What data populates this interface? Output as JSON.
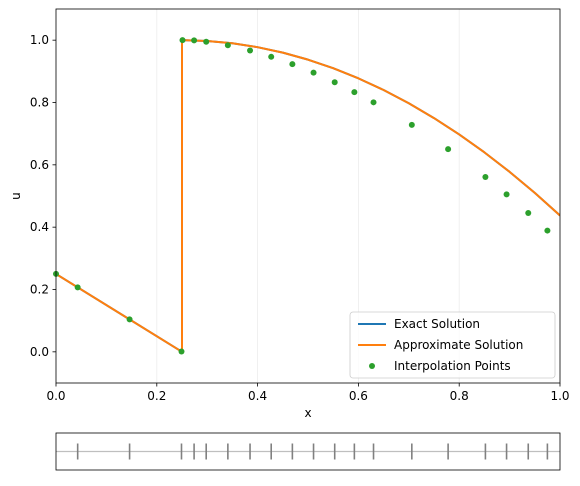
{
  "chart_data": [
    {
      "type": "line",
      "xlabel": "x",
      "ylabel": "u",
      "xlim": [
        0,
        1
      ],
      "ylim": [
        -0.1,
        1.1
      ],
      "x_ticks": [
        "0.0",
        "0.2",
        "0.4",
        "0.6",
        "0.8",
        "1.0"
      ],
      "y_ticks": [
        "0.0",
        "0.2",
        "0.4",
        "0.6",
        "0.8",
        "1.0"
      ],
      "grid": "x-only",
      "legend_position": "bottom-right",
      "series": [
        {
          "name": "Exact Solution",
          "color": "#1f77b4",
          "style": "line",
          "x": [
            0,
            0.25,
            0.25,
            0.3,
            0.35,
            0.4,
            0.45,
            0.5,
            0.55,
            0.6,
            0.65,
            0.7,
            0.75,
            0.8,
            0.85,
            0.9,
            0.95,
            1.0
          ],
          "y": [
            0.25,
            0.0,
            1.0,
            0.9975,
            0.99,
            0.9775,
            0.96,
            0.9375,
            0.91,
            0.8775,
            0.84,
            0.7975,
            0.75,
            0.6975,
            0.64,
            0.5775,
            0.51,
            0.4375
          ]
        },
        {
          "name": "Approximate Solution",
          "color": "#ff7f0e",
          "style": "line",
          "x": [
            0,
            0.25,
            0.25,
            0.3,
            0.35,
            0.4,
            0.45,
            0.5,
            0.55,
            0.6,
            0.65,
            0.7,
            0.75,
            0.8,
            0.85,
            0.9,
            0.95,
            1.0
          ],
          "y": [
            0.25,
            0.0,
            1.0,
            0.9975,
            0.99,
            0.9775,
            0.96,
            0.9375,
            0.91,
            0.8775,
            0.84,
            0.7975,
            0.75,
            0.6975,
            0.64,
            0.5775,
            0.51,
            0.4375
          ]
        },
        {
          "name": "Interpolation Points",
          "color": "#2ca02c",
          "style": "markers",
          "x": [
            0.0,
            0.043,
            0.146,
            0.249,
            0.251,
            0.274,
            0.298,
            0.341,
            0.385,
            0.427,
            0.469,
            0.511,
            0.553,
            0.592,
            0.63,
            0.706,
            0.778,
            0.852,
            0.894,
            0.937,
            0.975
          ],
          "y": [
            0.25,
            0.207,
            0.104,
            0.001,
            1.0,
            0.9993,
            0.9951,
            0.9836,
            0.9668,
            0.9466,
            0.923,
            0.8958,
            0.8648,
            0.8334,
            0.8006,
            0.7283,
            0.6503,
            0.561,
            0.5053,
            0.4456,
            0.3891
          ]
        }
      ]
    },
    {
      "type": "scatter",
      "xlim": [
        0,
        1
      ],
      "marker": "vertical-tick",
      "color": "#808080",
      "x": [
        0.043,
        0.146,
        0.249,
        0.274,
        0.298,
        0.341,
        0.385,
        0.427,
        0.469,
        0.511,
        0.553,
        0.592,
        0.63,
        0.706,
        0.778,
        0.852,
        0.894,
        0.937,
        0.975
      ]
    }
  ]
}
